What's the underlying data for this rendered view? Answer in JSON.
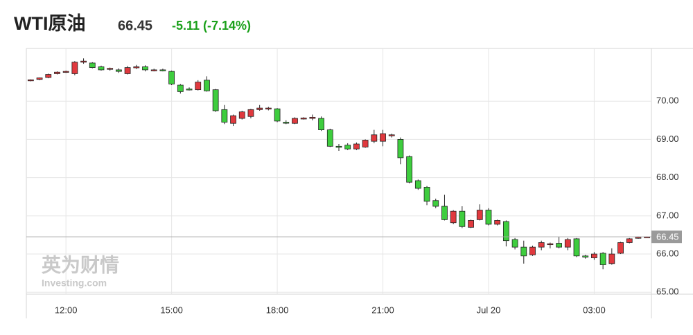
{
  "header": {
    "title": "WTI原油",
    "price": "66.45",
    "change": "-5.11 (-7.14%)"
  },
  "chart_data": {
    "type": "candlestick",
    "watermark": {
      "brand": "英为财情",
      "site": "Investing.com"
    },
    "categories": [
      null,
      null,
      null,
      null,
      "12:00",
      null,
      null,
      null,
      null,
      null,
      null,
      null,
      null,
      null,
      null,
      null,
      "15:00",
      null,
      null,
      null,
      null,
      null,
      null,
      null,
      null,
      null,
      null,
      null,
      "18:00",
      null,
      null,
      null,
      null,
      null,
      null,
      null,
      null,
      null,
      null,
      null,
      "21:00",
      null,
      null,
      null,
      null,
      null,
      null,
      null,
      null,
      null,
      null,
      null,
      "Jul 20",
      null,
      null,
      null,
      null,
      null,
      null,
      null,
      null,
      null,
      null,
      null,
      "03:00",
      null,
      null,
      null,
      null,
      null,
      null
    ],
    "open": [
      70.54,
      70.57,
      70.62,
      70.72,
      70.76,
      70.72,
      71.02,
      71.0,
      70.9,
      70.84,
      70.82,
      70.72,
      70.88,
      70.9,
      70.82,
      70.82,
      70.78,
      70.42,
      70.32,
      70.3,
      70.55,
      70.3,
      69.78,
      69.42,
      69.55,
      69.6,
      69.78,
      69.8,
      69.8,
      69.45,
      69.42,
      69.55,
      69.55,
      69.55,
      69.25,
      68.82,
      68.85,
      68.75,
      68.8,
      68.95,
      68.95,
      69.1,
      69.0,
      68.55,
      67.92,
      67.75,
      67.4,
      67.25,
      66.82,
      67.12,
      66.7,
      66.9,
      67.15,
      66.78,
      66.85,
      66.38,
      66.18,
      65.98,
      66.18,
      66.25,
      66.28,
      66.18,
      66.4,
      65.95,
      65.9,
      66.02,
      65.75,
      66.02,
      66.3,
      66.42,
      66.44
    ],
    "high": [
      70.57,
      70.62,
      70.72,
      70.78,
      70.8,
      71.05,
      71.12,
      71.02,
      70.93,
      70.88,
      70.86,
      70.92,
      70.95,
      70.94,
      70.85,
      70.85,
      70.8,
      70.45,
      70.36,
      70.55,
      70.65,
      70.32,
      69.9,
      69.65,
      69.75,
      69.8,
      69.9,
      69.85,
      69.82,
      69.5,
      69.58,
      69.58,
      69.65,
      69.6,
      69.28,
      68.88,
      68.9,
      68.92,
      69.0,
      69.25,
      69.25,
      69.15,
      69.05,
      68.58,
      67.95,
      67.78,
      67.45,
      67.55,
      67.15,
      67.25,
      66.9,
      67.3,
      67.2,
      66.9,
      66.88,
      66.42,
      66.35,
      66.22,
      66.35,
      66.3,
      66.45,
      66.42,
      66.42,
      65.98,
      66.05,
      66.05,
      66.15,
      66.32,
      66.42,
      66.46,
      66.46
    ],
    "low": [
      70.52,
      70.55,
      70.6,
      70.7,
      70.74,
      70.68,
      70.98,
      70.86,
      70.8,
      70.8,
      70.74,
      70.7,
      70.84,
      70.78,
      70.78,
      70.78,
      70.42,
      70.2,
      70.28,
      70.28,
      70.25,
      69.72,
      69.4,
      69.35,
      69.52,
      69.55,
      69.75,
      69.76,
      69.45,
      69.4,
      69.4,
      69.52,
      69.5,
      69.22,
      68.8,
      68.7,
      68.72,
      68.72,
      68.78,
      68.9,
      68.82,
      69.05,
      68.35,
      67.85,
      67.68,
      67.28,
      67.2,
      66.88,
      66.78,
      66.68,
      66.68,
      66.88,
      66.75,
      66.75,
      66.2,
      66.12,
      65.75,
      65.95,
      66.1,
      66.15,
      66.15,
      66.1,
      65.92,
      65.88,
      65.85,
      65.6,
      65.72,
      66.0,
      66.28,
      66.4,
      66.43
    ],
    "close": [
      70.56,
      70.61,
      70.7,
      70.76,
      70.78,
      71.02,
      71.05,
      70.88,
      70.82,
      70.86,
      70.78,
      70.88,
      70.9,
      70.82,
      70.82,
      70.8,
      70.45,
      70.25,
      70.3,
      70.5,
      70.27,
      69.75,
      69.45,
      69.62,
      69.72,
      69.78,
      69.82,
      69.82,
      69.48,
      69.44,
      69.55,
      69.56,
      69.58,
      69.25,
      68.82,
      68.8,
      68.75,
      68.88,
      68.98,
      69.12,
      69.15,
      69.12,
      68.52,
      67.88,
      67.72,
      67.38,
      67.25,
      66.9,
      67.12,
      66.72,
      66.88,
      67.15,
      66.78,
      66.88,
      66.35,
      66.18,
      65.95,
      66.18,
      66.3,
      66.27,
      66.18,
      66.38,
      65.95,
      65.92,
      66.0,
      65.72,
      66.0,
      66.3,
      66.4,
      66.44,
      66.45
    ],
    "up_color": "#e0393e",
    "down_color": "#3ecd3e",
    "last_price": 66.45,
    "ylim": [
      64.95,
      71.38
    ],
    "yticks": [
      {
        "value": 65,
        "label": "65.00"
      },
      {
        "value": 66,
        "label": "66.00"
      },
      {
        "value": 67,
        "label": "67.00"
      },
      {
        "value": 68,
        "label": "68.00"
      },
      {
        "value": 69,
        "label": "69.00"
      },
      {
        "value": 70,
        "label": "70.00"
      }
    ],
    "grid": true
  }
}
